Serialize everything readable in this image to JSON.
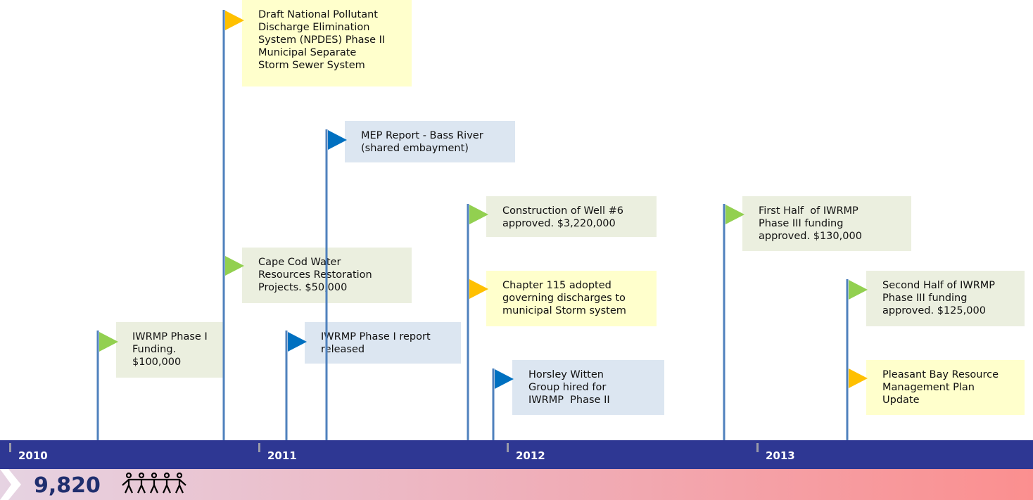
{
  "timeline": {
    "years": [
      "2010",
      "2011",
      "2012",
      "2013"
    ],
    "events": [
      {
        "lines": [
          "IWRMP Phase I",
          "Funding.",
          "$100,000"
        ]
      },
      {
        "lines": [
          "Draft National Pollutant",
          "Discharge Elimination",
          "System (NPDES) Phase II",
          "Municipal Separate",
          "Storm Sewer System"
        ]
      },
      {
        "lines": [
          "Cape Cod Water",
          "Resources Restoration",
          "Projects. $50,000"
        ]
      },
      {
        "lines": [
          "IWRMP Phase I report",
          "released"
        ]
      },
      {
        "lines": [
          "MEP Report - Bass River",
          "(shared embayment)"
        ]
      },
      {
        "lines": [
          "Construction of Well #6",
          "approved. $3,220,000"
        ]
      },
      {
        "lines": [
          "Chapter 115 adopted",
          "governing discharges to",
          "municipal Storm system"
        ]
      },
      {
        "lines": [
          "Horsley Witten",
          "Group hired for",
          "IWRMP  Phase II"
        ]
      },
      {
        "lines": [
          "First Half  of IWRMP",
          "Phase III funding",
          "approved. $130,000"
        ]
      },
      {
        "lines": [
          "Second Half of IWRMP",
          "Phase III funding",
          "approved. $125,000"
        ]
      },
      {
        "lines": [
          "Pleasant Bay Resource",
          "Management Plan",
          "Update"
        ]
      }
    ],
    "population": "9,820"
  }
}
